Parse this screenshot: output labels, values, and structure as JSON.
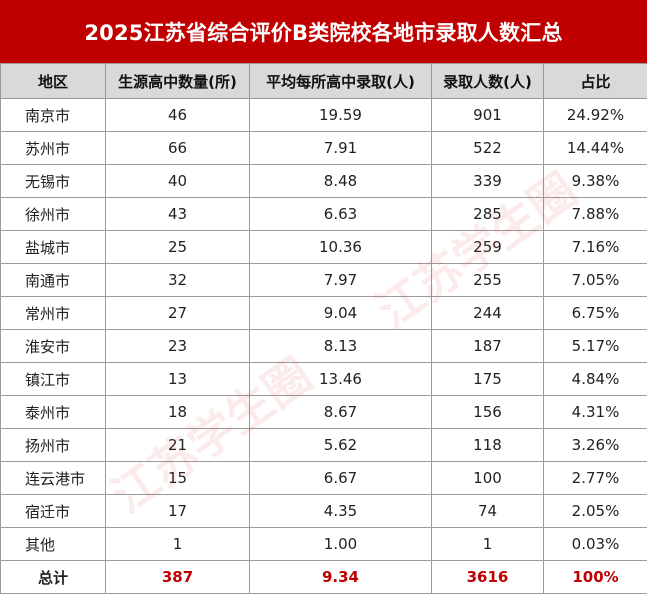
{
  "title": "2025江苏省综合评价B类院校各地市录取人数汇总",
  "headers": [
    "地区",
    "生源高中数量(所)",
    "平均每所高中录取(人)",
    "录取人数(人)",
    "占比"
  ],
  "rows": [
    [
      "南京市",
      "46",
      "19.59",
      "901",
      "24.92%"
    ],
    [
      "苏州市",
      "66",
      "7.91",
      "522",
      "14.44%"
    ],
    [
      "无锡市",
      "40",
      "8.48",
      "339",
      "9.38%"
    ],
    [
      "徐州市",
      "43",
      "6.63",
      "285",
      "7.88%"
    ],
    [
      "盐城市",
      "25",
      "10.36",
      "259",
      "7.16%"
    ],
    [
      "南通市",
      "32",
      "7.97",
      "255",
      "7.05%"
    ],
    [
      "常州市",
      "27",
      "9.04",
      "244",
      "6.75%"
    ],
    [
      "淮安市",
      "23",
      "8.13",
      "187",
      "5.17%"
    ],
    [
      "镇江市",
      "13",
      "13.46",
      "175",
      "4.84%"
    ],
    [
      "泰州市",
      "18",
      "8.67",
      "156",
      "4.31%"
    ],
    [
      "扬州市",
      "21",
      "5.62",
      "118",
      "3.26%"
    ],
    [
      "连云港市",
      "15",
      "6.67",
      "100",
      "2.77%"
    ],
    [
      "宿迁市",
      "17",
      "4.35",
      "74",
      "2.05%"
    ],
    [
      "其他",
      "1",
      "1.00",
      "1",
      "0.03%"
    ]
  ],
  "total": [
    "总计",
    "387",
    "9.34",
    "3616",
    "100%"
  ],
  "watermark": "江苏学生圈",
  "colors": {
    "title_bg": "#c00000",
    "header_bg": "#d9d9d9",
    "total_text": "#c00000"
  }
}
